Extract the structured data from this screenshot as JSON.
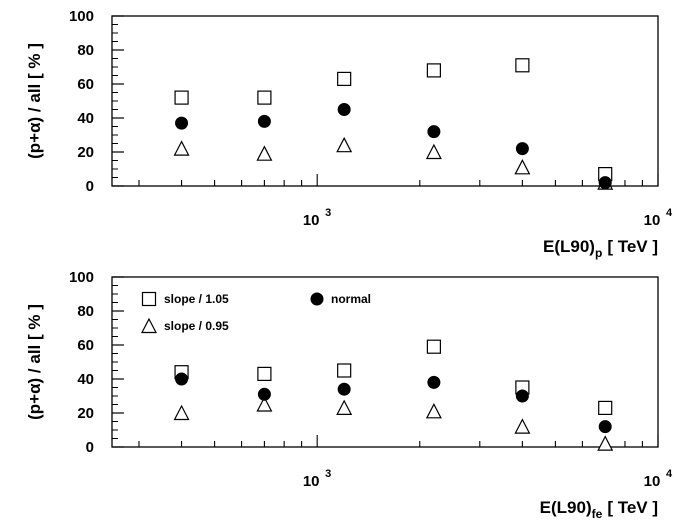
{
  "chart_data": [
    {
      "type": "scatter",
      "x_scale": "log",
      "xlim": [
        250,
        10000
      ],
      "ylim": [
        0,
        100
      ],
      "yticks": [
        0,
        20,
        40,
        60,
        80,
        100
      ],
      "x_tick_labels": [
        {
          "base": "10",
          "exp": "3"
        },
        {
          "base": "10",
          "exp": "4"
        }
      ],
      "xlabel": {
        "main": "E(L90)",
        "sub": "p",
        "unit": "[ TeV ]"
      },
      "ylabel": "(p+α) / all [ % ]",
      "series": [
        {
          "marker": "square",
          "x": [
            400,
            700,
            1200,
            2200,
            4000,
            7000
          ],
          "y": [
            52,
            52,
            63,
            68,
            71,
            7
          ]
        },
        {
          "marker": "circle",
          "x": [
            400,
            700,
            1200,
            2200,
            4000,
            7000
          ],
          "y": [
            37,
            38,
            45,
            32,
            22,
            2
          ]
        },
        {
          "marker": "triangle",
          "x": [
            400,
            700,
            1200,
            2200,
            4000,
            7000
          ],
          "y": [
            22,
            19,
            24,
            20,
            11,
            2
          ]
        }
      ]
    },
    {
      "type": "scatter",
      "x_scale": "log",
      "xlim": [
        250,
        10000
      ],
      "ylim": [
        0,
        100
      ],
      "yticks": [
        0,
        20,
        40,
        60,
        80,
        100
      ],
      "x_tick_labels": [
        {
          "base": "10",
          "exp": "3"
        },
        {
          "base": "10",
          "exp": "4"
        }
      ],
      "xlabel": {
        "main": "E(L90)",
        "sub": "fe",
        "unit": "[ TeV ]"
      },
      "ylabel": "(p+α) / all [ % ]",
      "legend": {
        "placement": "top-left"
      },
      "series": [
        {
          "name": "slope / 1.05",
          "marker": "square",
          "x": [
            400,
            700,
            1200,
            2200,
            4000,
            7000
          ],
          "y": [
            44,
            43,
            45,
            59,
            35,
            23
          ]
        },
        {
          "name": "normal",
          "marker": "circle",
          "x": [
            400,
            700,
            1200,
            2200,
            4000,
            7000
          ],
          "y": [
            40,
            31,
            34,
            38,
            30,
            12
          ]
        },
        {
          "name": "slope / 0.95",
          "marker": "triangle",
          "x": [
            400,
            700,
            1200,
            2200,
            4000,
            7000
          ],
          "y": [
            20,
            25,
            23,
            21,
            12,
            2
          ]
        }
      ]
    }
  ]
}
